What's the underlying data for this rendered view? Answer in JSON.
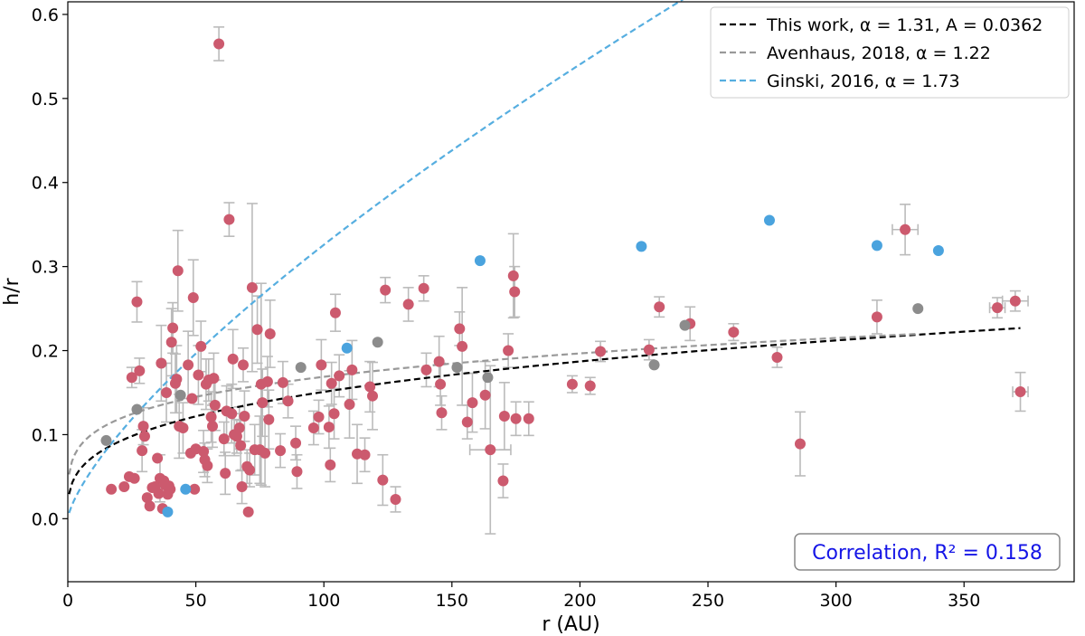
{
  "chart_data": {
    "type": "scatter",
    "title": "",
    "xlabel": "r (AU)",
    "ylabel": "h/r",
    "xlim": [
      0,
      393
    ],
    "ylim": [
      -0.075,
      0.615
    ],
    "xticks": [
      "0",
      "50",
      "100",
      "150",
      "200",
      "250",
      "300",
      "350"
    ],
    "yticks": [
      "0.0",
      "0.1",
      "0.2",
      "0.3",
      "0.4",
      "0.5",
      "0.6"
    ],
    "grid": false,
    "legend_position": "top-right",
    "annotation": "Correlation, R² = 0.158",
    "colors": {
      "red_points": "#cc5a6e",
      "gray_points": "#8c8c8c",
      "blue_points": "#4aa3de",
      "error_bars": "#bbbbbb",
      "fit_this_work": "#000000",
      "fit_avenhaus": "#999999",
      "fit_ginski": "#56aee0",
      "annotation_text": "#1515e6"
    },
    "series": [
      {
        "name": "This work, α = 1.31, A = 0.0362",
        "kind": "line",
        "style": "dashed",
        "color": "#000000",
        "A": 0.0362,
        "alpha": 1.31,
        "x_range": [
          0.5,
          372
        ]
      },
      {
        "name": "Avenhaus, 2018, α = 1.22",
        "kind": "line",
        "style": "dashed",
        "color": "#999999",
        "A": 0.0613,
        "alpha": 1.22,
        "x_range": [
          0.5,
          332
        ]
      },
      {
        "name": "Ginski, 2016, α = 1.73",
        "kind": "line",
        "style": "dashed",
        "color": "#56aee0",
        "A": 0.0113,
        "alpha": 1.73,
        "x_range": [
          0.5,
          270
        ]
      },
      {
        "kind": "points",
        "color": "#cc5a6e",
        "points": [
          [
            17,
            0.035,
            0,
            0
          ],
          [
            22,
            0.038,
            0,
            0
          ],
          [
            24,
            0.05,
            0,
            0
          ],
          [
            25,
            0.168,
            0,
            0.012
          ],
          [
            26,
            0.048,
            0,
            0
          ],
          [
            27,
            0.258,
            0,
            0.024
          ],
          [
            28,
            0.176,
            0,
            0.015
          ],
          [
            29,
            0.081,
            0,
            0.025
          ],
          [
            29.5,
            0.11,
            0,
            0.022
          ],
          [
            30,
            0.098,
            0,
            0
          ],
          [
            31,
            0.025,
            0,
            0
          ],
          [
            32,
            0.015,
            0,
            0
          ],
          [
            33,
            0.037,
            0,
            0
          ],
          [
            34,
            0.038,
            0,
            0
          ],
          [
            35,
            0.072,
            0,
            0
          ],
          [
            35.5,
            0.03,
            0,
            0
          ],
          [
            36,
            0.048,
            0,
            0.028
          ],
          [
            36.5,
            0.185,
            0,
            0.045
          ],
          [
            37,
            0.012,
            0,
            0
          ],
          [
            37.5,
            0.045,
            0,
            0
          ],
          [
            38,
            0.04,
            0,
            0
          ],
          [
            38.5,
            0.15,
            0,
            0.035
          ],
          [
            39,
            0.029,
            0,
            0
          ],
          [
            39.5,
            0.039,
            0,
            0
          ],
          [
            40,
            0.035,
            0,
            0
          ],
          [
            40.5,
            0.21,
            0,
            0.04
          ],
          [
            41,
            0.227,
            0,
            0.03
          ],
          [
            42,
            0.161,
            0,
            0.035
          ],
          [
            42.5,
            0.166,
            0,
            0.04
          ],
          [
            43,
            0.295,
            0,
            0.048
          ],
          [
            43.5,
            0.11,
            0,
            0.038
          ],
          [
            45,
            0.108,
            0,
            0.03
          ],
          [
            47,
            0.183,
            0,
            0.04
          ],
          [
            48,
            0.078,
            0,
            0
          ],
          [
            48.5,
            0.143,
            0,
            0
          ],
          [
            49,
            0.263,
            0,
            0.045
          ],
          [
            49.5,
            0.035,
            0,
            0
          ],
          [
            50,
            0.083,
            0,
            0
          ],
          [
            51,
            0.171,
            0,
            0.035
          ],
          [
            52,
            0.205,
            0,
            0.03
          ],
          [
            53,
            0.08,
            0,
            0.025
          ],
          [
            53.5,
            0.07,
            0,
            0.02
          ],
          [
            54,
            0.16,
            0,
            0.03
          ],
          [
            54.5,
            0.063,
            0,
            0.02
          ],
          [
            55,
            0.165,
            0,
            0.025
          ],
          [
            56,
            0.121,
            0,
            0.03
          ],
          [
            56.5,
            0.11,
            0,
            0.025
          ],
          [
            57,
            0.167,
            0,
            0.03
          ],
          [
            57.5,
            0.135,
            0,
            0.03
          ],
          [
            59,
            0.565,
            0,
            0.02
          ],
          [
            61,
            0.095,
            0,
            0.02
          ],
          [
            61.5,
            0.054,
            0,
            0.025
          ],
          [
            62,
            0.128,
            0,
            0.03
          ],
          [
            63,
            0.356,
            0,
            0.02
          ],
          [
            64,
            0.125,
            0,
            0.035
          ],
          [
            64.5,
            0.19,
            0,
            0.035
          ],
          [
            65,
            0.1,
            0,
            0.025
          ],
          [
            66,
            0.098,
            0,
            0.02
          ],
          [
            67,
            0.108,
            0,
            0.025
          ],
          [
            67.5,
            0.087,
            0,
            0.03
          ],
          [
            68,
            0.038,
            0,
            0.02
          ],
          [
            68.5,
            0.183,
            0,
            0.02
          ],
          [
            69,
            0.122,
            0,
            0.03
          ],
          [
            70,
            0.062,
            0,
            0.02
          ],
          [
            70.5,
            0.008,
            0,
            0
          ],
          [
            71,
            0.058,
            0,
            0.02
          ],
          [
            72,
            0.275,
            0,
            0.1
          ],
          [
            73,
            0.082,
            0,
            0.03
          ],
          [
            74,
            0.225,
            0,
            0.04
          ],
          [
            75,
            0.082,
            0,
            0.04
          ],
          [
            75.5,
            0.16,
            0,
            0.12
          ],
          [
            76,
            0.138,
            0,
            0.04
          ],
          [
            77,
            0.078,
            0,
            0.04
          ],
          [
            78,
            0.163,
            0,
            0.03
          ],
          [
            78.5,
            0.118,
            0,
            0.035
          ],
          [
            79,
            0.22,
            0,
            0.04
          ],
          [
            83,
            0.081,
            0,
            0.02
          ],
          [
            84,
            0.162,
            0,
            0.025
          ],
          [
            86,
            0.14,
            0,
            0.02
          ],
          [
            89,
            0.09,
            0,
            0.02
          ],
          [
            89.5,
            0.056,
            0,
            0.02
          ],
          [
            96,
            0.108,
            0,
            0.02
          ],
          [
            98,
            0.121,
            0,
            0.02
          ],
          [
            99,
            0.183,
            0,
            0.03
          ],
          [
            102,
            0.109,
            0,
            0.025
          ],
          [
            102.5,
            0.064,
            0,
            0.02
          ],
          [
            103,
            0.161,
            0,
            0.025
          ],
          [
            104,
            0.125,
            0,
            0.03
          ],
          [
            104.5,
            0.245,
            0,
            0.022
          ],
          [
            106,
            0.17,
            0,
            0.025
          ],
          [
            110,
            0.136,
            0,
            0.04
          ],
          [
            111,
            0.177,
            0,
            0.035
          ],
          [
            113,
            0.077,
            0,
            0.035
          ],
          [
            116,
            0.076,
            0,
            0.02
          ],
          [
            118,
            0.157,
            0,
            0.03
          ],
          [
            119,
            0.146,
            0,
            0.04
          ],
          [
            123,
            0.046,
            0,
            0.03
          ],
          [
            124,
            0.272,
            0,
            0.015
          ],
          [
            128,
            0.023,
            0,
            0.015
          ],
          [
            133,
            0.255,
            0,
            0.02
          ],
          [
            139,
            0.274,
            0,
            0.015
          ],
          [
            140,
            0.177,
            0,
            0.02
          ],
          [
            145,
            0.187,
            0,
            0.03
          ],
          [
            145.5,
            0.16,
            0,
            0.025
          ],
          [
            146,
            0.126,
            0,
            0.02
          ],
          [
            153,
            0.226,
            0,
            0.02
          ],
          [
            154,
            0.205,
            0,
            0.07
          ],
          [
            156,
            0.115,
            0,
            0.02
          ],
          [
            158,
            0.138,
            0,
            0.035
          ],
          [
            163,
            0.147,
            0,
            0.04
          ],
          [
            165,
            0.082,
            8,
            0.1
          ],
          [
            170,
            0.045,
            0,
            0.02
          ],
          [
            170.5,
            0.122,
            0,
            0.04
          ],
          [
            172,
            0.2,
            0,
            0.02
          ],
          [
            174,
            0.289,
            0,
            0.05
          ],
          [
            174.5,
            0.27,
            0,
            0.03
          ],
          [
            175,
            0.119,
            0,
            0.02
          ],
          [
            180,
            0.119,
            0,
            0.02
          ],
          [
            197,
            0.16,
            0,
            0.01
          ],
          [
            204,
            0.158,
            0,
            0.01
          ],
          [
            208,
            0.199,
            0,
            0.012
          ],
          [
            227,
            0.201,
            0,
            0.012
          ],
          [
            231,
            0.252,
            0,
            0.012
          ],
          [
            243,
            0.232,
            0,
            0.02
          ],
          [
            260,
            0.222,
            0,
            0.01
          ],
          [
            277,
            0.192,
            0,
            0.012
          ],
          [
            286,
            0.089,
            0,
            0.038
          ],
          [
            316,
            0.24,
            0,
            0.02
          ],
          [
            327,
            0.344,
            5,
            0.03
          ],
          [
            363,
            0.251,
            3,
            0.012
          ],
          [
            370,
            0.259,
            5,
            0.012
          ],
          [
            372,
            0.151,
            3,
            0.023
          ]
        ]
      },
      {
        "kind": "points",
        "color": "#8c8c8c",
        "points": [
          [
            15,
            0.093,
            0,
            0
          ],
          [
            27,
            0.13,
            0,
            0
          ],
          [
            44,
            0.147,
            0,
            0
          ],
          [
            91,
            0.18,
            0,
            0
          ],
          [
            121,
            0.21,
            0,
            0
          ],
          [
            152,
            0.18,
            0,
            0
          ],
          [
            164,
            0.168,
            0,
            0
          ],
          [
            229,
            0.183,
            0,
            0
          ],
          [
            241,
            0.23,
            0,
            0
          ],
          [
            332,
            0.25,
            0,
            0
          ]
        ]
      },
      {
        "kind": "points",
        "color": "#4aa3de",
        "points": [
          [
            39,
            0.008,
            0,
            0
          ],
          [
            46,
            0.035,
            0,
            0
          ],
          [
            109,
            0.203,
            0,
            0
          ],
          [
            161,
            0.307,
            0,
            0
          ],
          [
            224,
            0.324,
            0,
            0
          ],
          [
            274,
            0.355,
            0,
            0
          ],
          [
            316,
            0.325,
            0,
            0
          ],
          [
            340,
            0.319,
            0,
            0
          ]
        ]
      }
    ]
  }
}
